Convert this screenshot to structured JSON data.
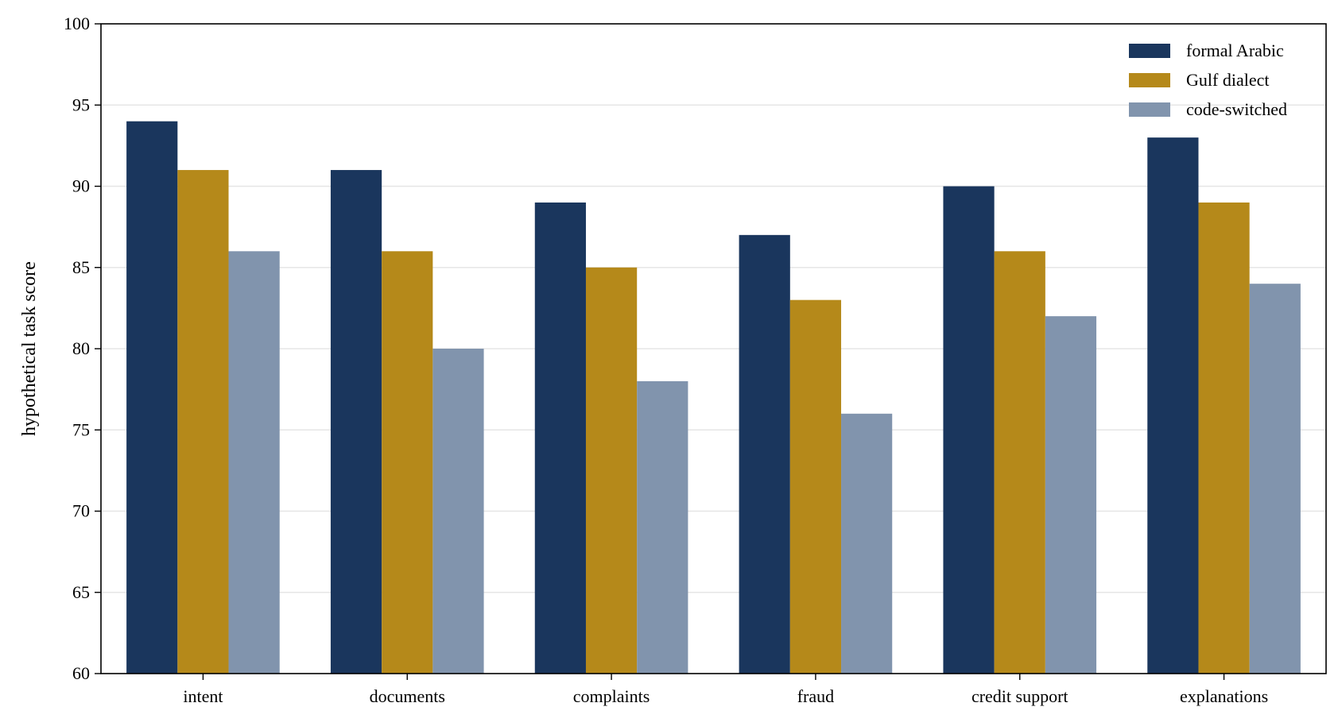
{
  "chart_data": {
    "type": "bar",
    "title": "",
    "xlabel": "",
    "ylabel": "hypothetical task score",
    "ylim": [
      60,
      100
    ],
    "yticks": [
      60,
      65,
      70,
      75,
      80,
      85,
      90,
      95,
      100
    ],
    "grid": "horizontal",
    "legend_position": "top-right",
    "categories": [
      "intent",
      "documents",
      "complaints",
      "fraud",
      "credit support",
      "explanations"
    ],
    "series": [
      {
        "name": "formal Arabic",
        "color": "#1a365d",
        "values": [
          94,
          91,
          89,
          87,
          90,
          93
        ]
      },
      {
        "name": "Gulf dialect",
        "color": "#b5891a",
        "values": [
          91,
          86,
          85,
          83,
          86,
          89
        ]
      },
      {
        "name": "code-switched",
        "color": "#8194ad",
        "values": [
          86,
          80,
          78,
          76,
          82,
          84
        ]
      }
    ]
  }
}
